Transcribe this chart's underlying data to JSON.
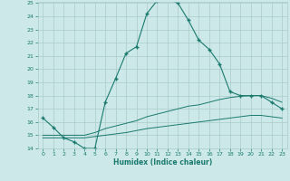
{
  "xlabel": "Humidex (Indice chaleur)",
  "x": [
    0,
    1,
    2,
    3,
    4,
    5,
    6,
    7,
    8,
    9,
    10,
    11,
    12,
    13,
    14,
    15,
    16,
    17,
    18,
    19,
    20,
    21,
    22,
    23
  ],
  "line1": [
    16.3,
    15.6,
    14.8,
    14.5,
    14.0,
    14.0,
    17.5,
    19.3,
    21.2,
    21.7,
    24.2,
    25.2,
    25.3,
    25.0,
    23.7,
    22.2,
    21.5,
    20.4,
    18.3,
    18.0,
    18.0,
    18.0,
    17.5,
    17.0
  ],
  "line2": [
    15.0,
    15.0,
    15.0,
    15.0,
    15.0,
    15.2,
    15.5,
    15.7,
    15.9,
    16.1,
    16.4,
    16.6,
    16.8,
    17.0,
    17.2,
    17.3,
    17.5,
    17.7,
    17.85,
    17.95,
    18.0,
    18.0,
    17.8,
    17.5
  ],
  "line3": [
    14.8,
    14.8,
    14.8,
    14.8,
    14.8,
    14.9,
    15.0,
    15.1,
    15.2,
    15.35,
    15.5,
    15.6,
    15.7,
    15.8,
    15.9,
    16.0,
    16.1,
    16.2,
    16.3,
    16.4,
    16.5,
    16.5,
    16.4,
    16.3
  ],
  "color": "#1a7a6e",
  "bg_color": "#cce8e8",
  "grid_color": "#aacccc",
  "ylim": [
    14,
    25
  ],
  "xlim": [
    -0.5,
    23.5
  ],
  "yticks": [
    14,
    15,
    16,
    17,
    18,
    19,
    20,
    21,
    22,
    23,
    24,
    25
  ],
  "xticks": [
    0,
    1,
    2,
    3,
    4,
    5,
    6,
    7,
    8,
    9,
    10,
    11,
    12,
    13,
    14,
    15,
    16,
    17,
    18,
    19,
    20,
    21,
    22,
    23
  ]
}
